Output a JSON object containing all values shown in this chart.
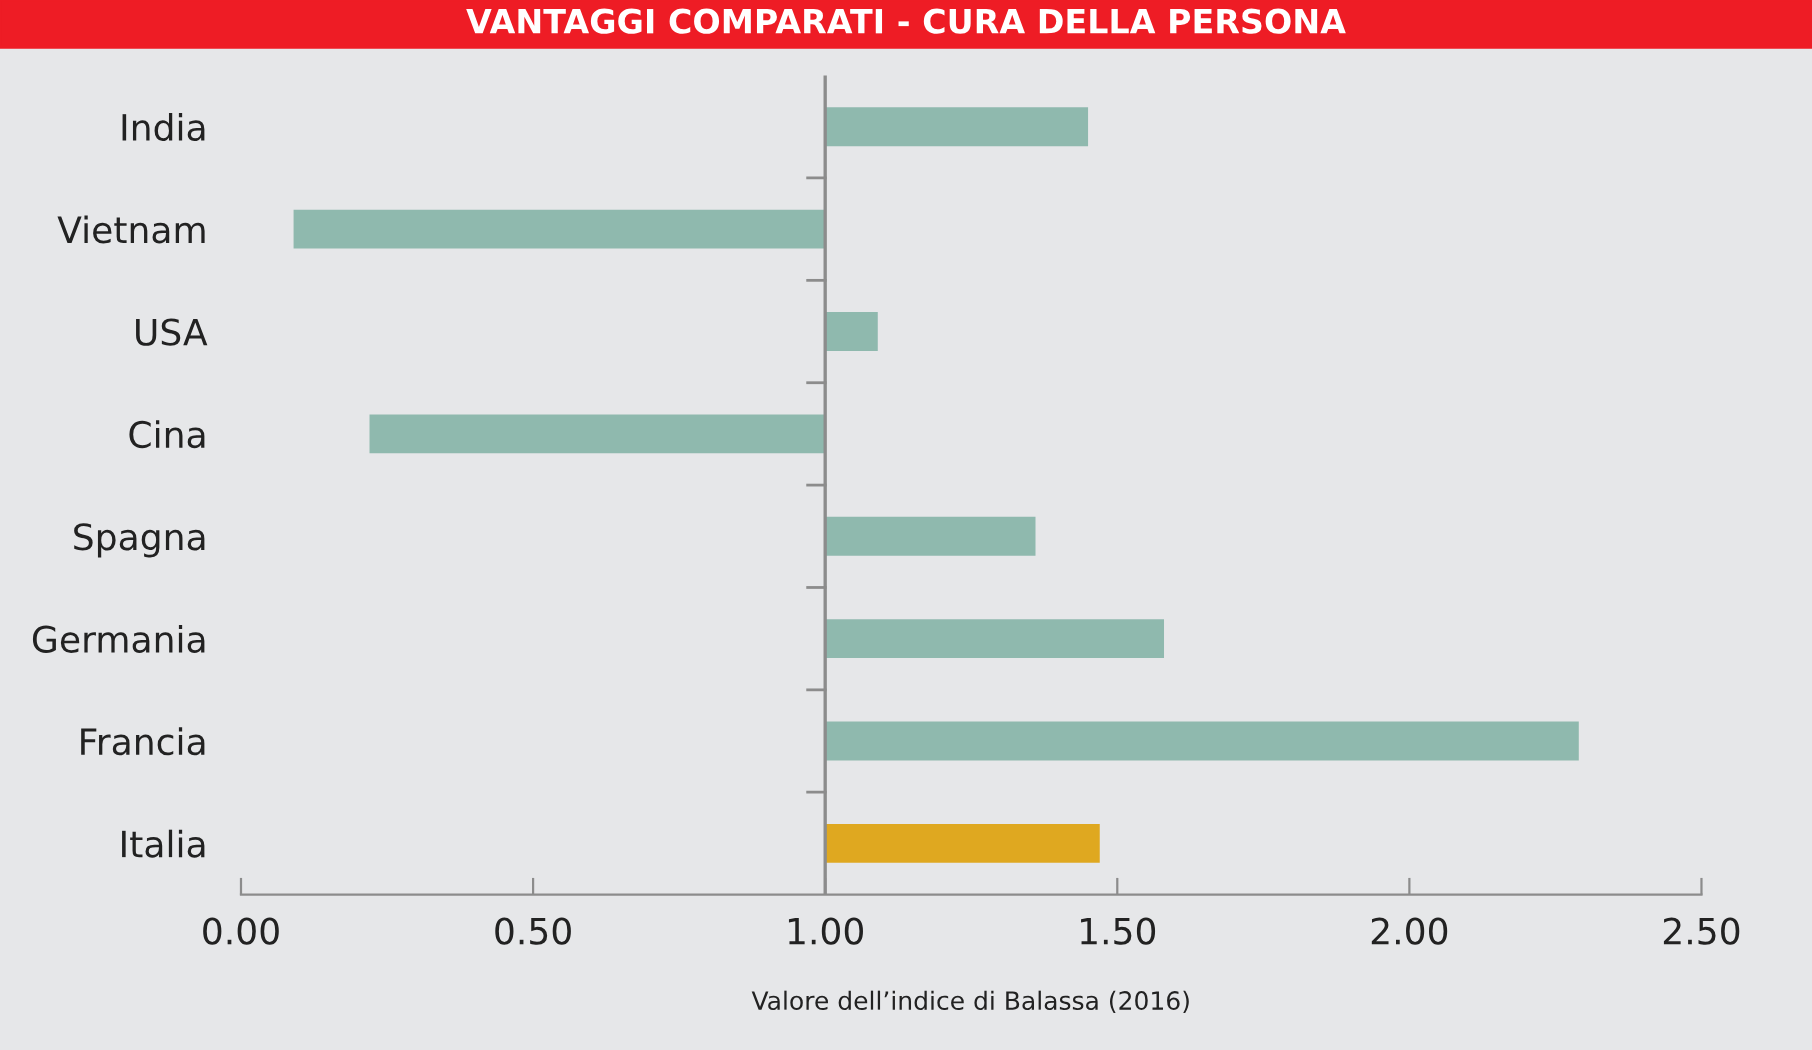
{
  "chart_data": {
    "type": "bar",
    "orientation": "horizontal",
    "title": "VANTAGGI COMPARATI - CURA DELLA PERSONA",
    "xlabel": "Valore dell’indice di Balassa (2016)",
    "categories": [
      "India",
      "Vietnam",
      "USA",
      "Cina",
      "Spagna",
      "Germania",
      "Francia",
      "Italia"
    ],
    "base": [
      1,
      1,
      1,
      1,
      1,
      1,
      1,
      1
    ],
    "values": [
      0.45,
      -0.91,
      0.09,
      -0.78,
      0.36,
      0.58,
      1.29,
      0.47
    ],
    "colors": [
      "#8fb9ae",
      "#8fb9ae",
      "#8fb9ae",
      "#8fb9ae",
      "#8fb9ae",
      "#8fb9ae",
      "#8fb9ae",
      "#dfa820"
    ],
    "xlim": [
      0,
      2.5
    ],
    "xticks": [
      {
        "value": 0,
        "label": "0.00"
      },
      {
        "value": 0.5,
        "label": "0.50"
      },
      {
        "value": 1,
        "label": "1.00"
      },
      {
        "value": 1.5,
        "label": "1.50"
      },
      {
        "value": 2,
        "label": "2.00"
      },
      {
        "value": 2.5,
        "label": "2.50"
      }
    ],
    "ref_lines": [
      {
        "axis": "x",
        "value": 1,
        "color": "#8c8c8c"
      }
    ],
    "grid": false
  }
}
